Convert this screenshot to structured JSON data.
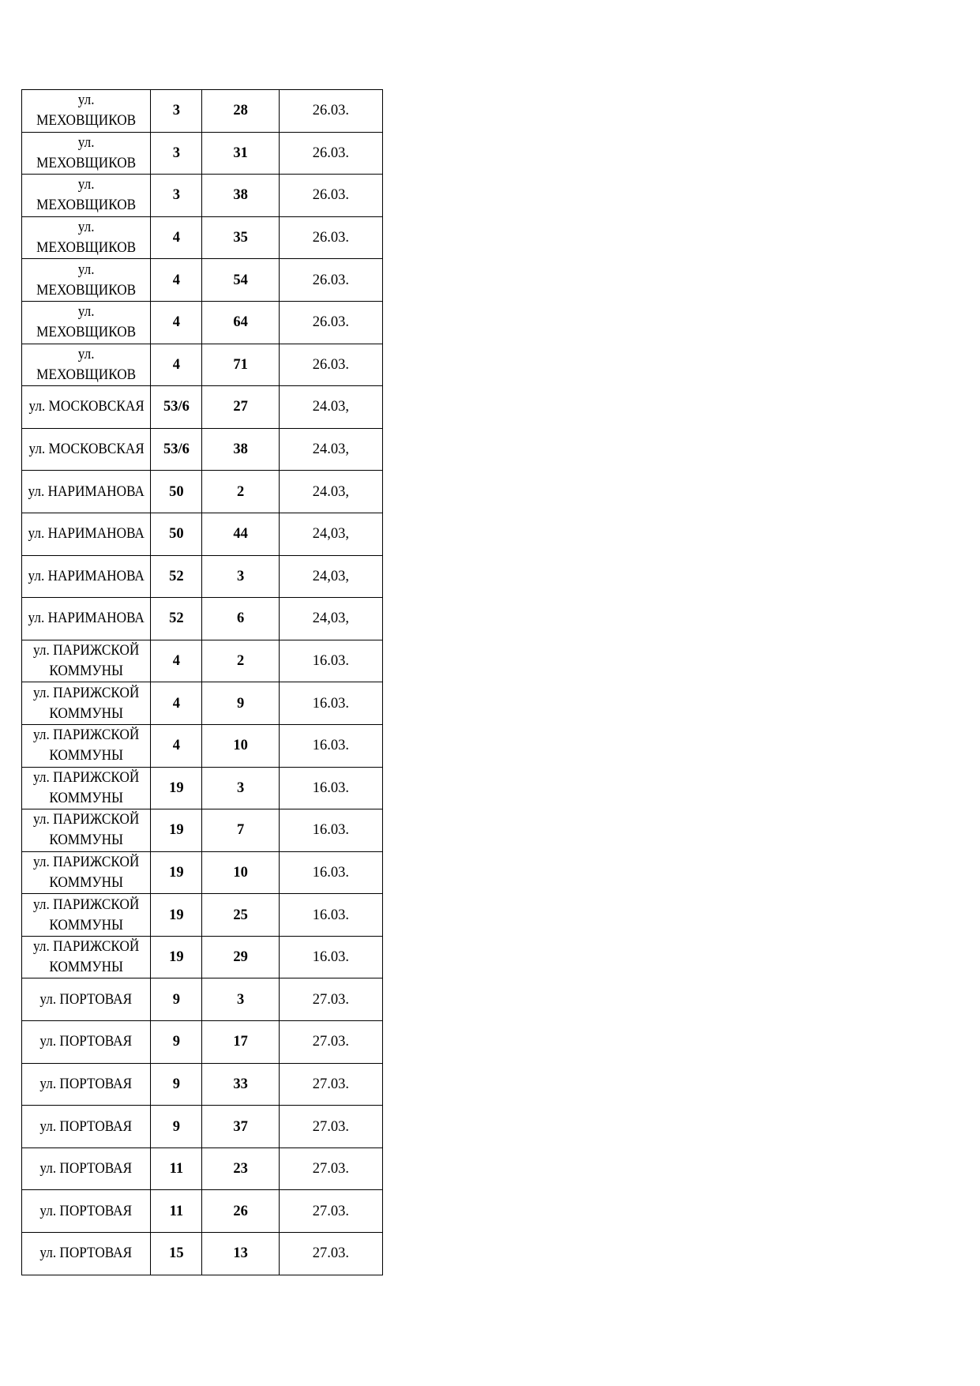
{
  "table": {
    "rows": [
      [
        "ул. МЕХОВЩИКОВ",
        "3",
        "28",
        "26.03."
      ],
      [
        "ул. МЕХОВЩИКОВ",
        "3",
        "31",
        "26.03."
      ],
      [
        "ул. МЕХОВЩИКОВ",
        "3",
        "38",
        "26.03."
      ],
      [
        "ул. МЕХОВЩИКОВ",
        "4",
        "35",
        "26.03."
      ],
      [
        "ул. МЕХОВЩИКОВ",
        "4",
        "54",
        "26.03."
      ],
      [
        "ул. МЕХОВЩИКОВ",
        "4",
        "64",
        "26.03."
      ],
      [
        "ул. МЕХОВЩИКОВ",
        "4",
        "71",
        "26.03."
      ],
      [
        "ул. МОСКОВСКАЯ",
        "53/6",
        "27",
        "24.03,"
      ],
      [
        "ул. МОСКОВСКАЯ",
        "53/6",
        "38",
        "24.03,"
      ],
      [
        "ул. НАРИМАНОВА",
        "50",
        "2",
        "24.03,"
      ],
      [
        "ул. НАРИМАНОВА",
        "50",
        "44",
        "24,03,"
      ],
      [
        "ул. НАРИМАНОВА",
        "52",
        "3",
        "24,03,"
      ],
      [
        "ул. НАРИМАНОВА",
        "52",
        "6",
        "24,03,"
      ],
      [
        "ул. ПАРИЖСКОЙ КОММУНЫ",
        "4",
        "2",
        "16.03."
      ],
      [
        "ул. ПАРИЖСКОЙ КОММУНЫ",
        "4",
        "9",
        "16.03."
      ],
      [
        "ул. ПАРИЖСКОЙ КОММУНЫ",
        "4",
        "10",
        "16.03."
      ],
      [
        "ул. ПАРИЖСКОЙ КОММУНЫ",
        "19",
        "3",
        "16.03."
      ],
      [
        "ул. ПАРИЖСКОЙ КОММУНЫ",
        "19",
        "7",
        "16.03."
      ],
      [
        "ул. ПАРИЖСКОЙ КОММУНЫ",
        "19",
        "10",
        "16.03."
      ],
      [
        "ул. ПАРИЖСКОЙ КОММУНЫ",
        "19",
        "25",
        "16.03."
      ],
      [
        "ул. ПАРИЖСКОЙ КОММУНЫ",
        "19",
        "29",
        "16.03."
      ],
      [
        "ул. ПОРТОВАЯ",
        "9",
        "3",
        "27.03."
      ],
      [
        "ул. ПОРТОВАЯ",
        "9",
        "17",
        "27.03."
      ],
      [
        "ул. ПОРТОВАЯ",
        "9",
        "33",
        "27.03."
      ],
      [
        "ул. ПОРТОВАЯ",
        "9",
        "37",
        "27.03."
      ],
      [
        "ул. ПОРТОВАЯ",
        "11",
        "23",
        "27.03."
      ],
      [
        "ул. ПОРТОВАЯ",
        "11",
        "26",
        "27.03."
      ],
      [
        "ул. ПОРТОВАЯ",
        "15",
        "13",
        "27.03."
      ]
    ]
  }
}
